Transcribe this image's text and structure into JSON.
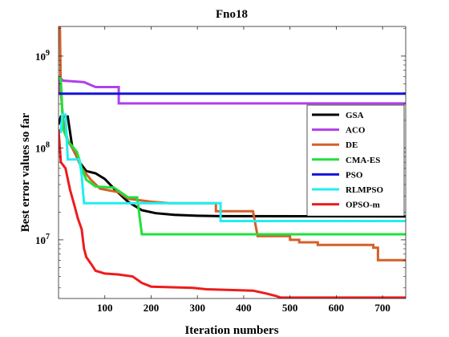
{
  "chart_data": {
    "type": "line",
    "title": "Fno18",
    "xlabel": "Iteration numbers",
    "ylabel": "Best error values so far",
    "xlim": [
      0,
      750
    ],
    "ylim": [
      2300000.0,
      2100000000.0
    ],
    "yscale": "log",
    "x_ticks": [
      100,
      200,
      300,
      400,
      500,
      600,
      700
    ],
    "y_ticks": [
      {
        "value": 10000000.0,
        "base": "10",
        "exp": "7"
      },
      {
        "value": 100000000.0,
        "base": "10",
        "exp": "8"
      },
      {
        "value": 1000000000.0,
        "base": "10",
        "exp": "9"
      }
    ],
    "grid": false,
    "legend_position": "right",
    "series": [
      {
        "name": "GSA",
        "color": "#000000",
        "points": [
          [
            0,
            180000000.0
          ],
          [
            5,
            220000000.0
          ],
          [
            20,
            220000000.0
          ],
          [
            30,
            100000000.0
          ],
          [
            45,
            70000000.0
          ],
          [
            60,
            56000000.0
          ],
          [
            80,
            53000000.0
          ],
          [
            100,
            46000000.0
          ],
          [
            120,
            36000000.0
          ],
          [
            150,
            26000000.0
          ],
          [
            180,
            21000000.0
          ],
          [
            210,
            19500000.0
          ],
          [
            250,
            18700000.0
          ],
          [
            300,
            18300000.0
          ],
          [
            350,
            18100000.0
          ],
          [
            750,
            18000000.0
          ]
        ]
      },
      {
        "name": "ACO",
        "color": "#b040e8",
        "points": [
          [
            0,
            400000000.0
          ],
          [
            3,
            580000000.0
          ],
          [
            10,
            540000000.0
          ],
          [
            55,
            520000000.0
          ],
          [
            80,
            460000000.0
          ],
          [
            130,
            460000000.0
          ],
          [
            130,
            305000000.0
          ],
          [
            750,
            305000000.0
          ]
        ]
      },
      {
        "name": "DE",
        "color": "#d4602a",
        "points": [
          [
            0,
            2100000000.0
          ],
          [
            3,
            2100000000.0
          ],
          [
            5,
            400000000.0
          ],
          [
            10,
            200000000.0
          ],
          [
            20,
            120000000.0
          ],
          [
            35,
            90000000.0
          ],
          [
            50,
            60000000.0
          ],
          [
            70,
            45000000.0
          ],
          [
            90,
            36000000.0
          ],
          [
            130,
            33000000.0
          ],
          [
            150,
            28000000.0
          ],
          [
            200,
            26000000.0
          ],
          [
            240,
            25000000.0
          ],
          [
            340,
            25000000.0
          ],
          [
            340,
            20500000.0
          ],
          [
            420,
            20500000.0
          ],
          [
            430,
            11000000.0
          ],
          [
            500,
            11000000.0
          ],
          [
            500,
            10000000.0
          ],
          [
            520,
            10000000.0
          ],
          [
            520,
            9400000.0
          ],
          [
            560,
            9400000.0
          ],
          [
            560,
            8800000.0
          ],
          [
            680,
            8800000.0
          ],
          [
            680,
            8200000.0
          ],
          [
            690,
            8200000.0
          ],
          [
            690,
            6000000.0
          ],
          [
            750,
            6000000.0
          ]
        ]
      },
      {
        "name": "CMA-ES",
        "color": "#21e03b",
        "points": [
          [
            0,
            600000000.0
          ],
          [
            5,
            550000000.0
          ],
          [
            10,
            160000000.0
          ],
          [
            20,
            120000000.0
          ],
          [
            40,
            90000000.0
          ],
          [
            50,
            60000000.0
          ],
          [
            60,
            45000000.0
          ],
          [
            80,
            38000000.0
          ],
          [
            120,
            37000000.0
          ],
          [
            150,
            29000000.0
          ],
          [
            170,
            29000000.0
          ],
          [
            180,
            11500000.0
          ],
          [
            750,
            11500000.0
          ]
        ]
      },
      {
        "name": "PSO",
        "color": "#1414d8",
        "points": [
          [
            0,
            390000000.0
          ],
          [
            750,
            390000000.0
          ]
        ]
      },
      {
        "name": "RLMPSO",
        "color": "#22eef0",
        "points": [
          [
            0,
            150000000.0
          ],
          [
            5,
            150000000.0
          ],
          [
            8,
            230000000.0
          ],
          [
            15,
            230000000.0
          ],
          [
            20,
            75000000.0
          ],
          [
            45,
            75000000.0
          ],
          [
            50,
            50000000.0
          ],
          [
            55,
            25000000.0
          ],
          [
            100,
            25000000.0
          ],
          [
            300,
            25000000.0
          ],
          [
            350,
            25000000.0
          ],
          [
            350,
            16000000.0
          ],
          [
            750,
            16000000.0
          ]
        ]
      },
      {
        "name": "OPSO-m",
        "color": "#ee1c1c",
        "points": [
          [
            0,
            160000000.0
          ],
          [
            5,
            70000000.0
          ],
          [
            15,
            60000000.0
          ],
          [
            25,
            35000000.0
          ],
          [
            35,
            23000000.0
          ],
          [
            42,
            17000000.0
          ],
          [
            50,
            13000000.0
          ],
          [
            55,
            8000000.0
          ],
          [
            60,
            6500000.0
          ],
          [
            70,
            5500000.0
          ],
          [
            80,
            4600000.0
          ],
          [
            100,
            4300000.0
          ],
          [
            130,
            4200000.0
          ],
          [
            160,
            4000000.0
          ],
          [
            180,
            3400000.0
          ],
          [
            200,
            3100000.0
          ],
          [
            290,
            3000000.0
          ],
          [
            320,
            2900000.0
          ],
          [
            420,
            2800000.0
          ],
          [
            450,
            2600000.0
          ],
          [
            470,
            2450000.0
          ],
          [
            480,
            2350000.0
          ],
          [
            750,
            2350000.0
          ]
        ]
      }
    ]
  }
}
